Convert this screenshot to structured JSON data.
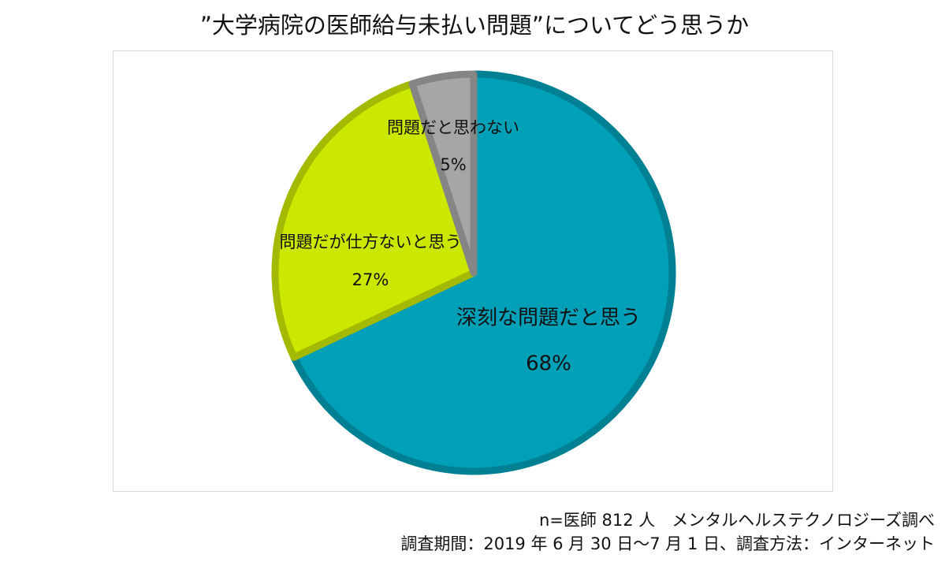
{
  "chart_data": {
    "type": "pie",
    "title": "”大学病院の医師給与未払い問題”についてどう思うか",
    "slices": [
      {
        "label": "深刻な問題だと思う",
        "value": 68,
        "value_label": "68%",
        "color": "#00A0B8"
      },
      {
        "label": "問題だが仕方ないと思う",
        "value": 27,
        "value_label": "27%",
        "color": "#CCE800"
      },
      {
        "label": "問題だと思わない",
        "value": 5,
        "value_label": "5%",
        "color": "#A6A6A6"
      }
    ],
    "legend": "none"
  },
  "footnotes": {
    "line1": "n=医師 812 人　メンタルヘルステクノロジーズ調べ",
    "line2": "調査期間：2019 年 6 月 30 日〜7 月 1 日、調査方法：インターネット"
  }
}
